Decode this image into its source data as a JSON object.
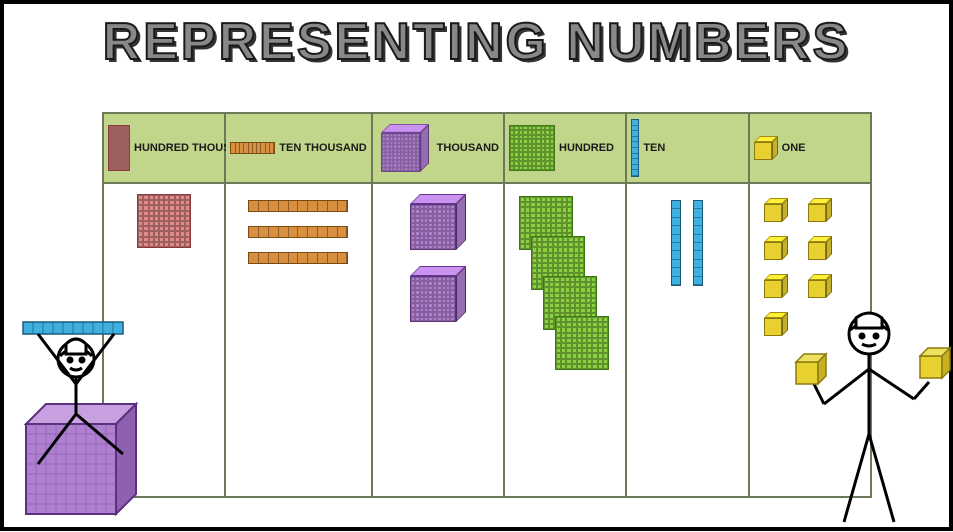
{
  "title": "REPRESENTING NUMBERS",
  "title_color": "#888888",
  "title_stroke": "#1a1a1a",
  "background": "#ffffff",
  "border_color": "#000000",
  "chart": {
    "header_bg": "#c2d68b",
    "border_color": "#6b7a5a",
    "columns": [
      {
        "label": "HUNDRED THOUSAND",
        "header_shape": "flat",
        "header_color": "#e08a8a",
        "body_count": 1,
        "body_shape": "flat",
        "body_color": "#e08a8a",
        "body_border": "#8a3a3a"
      },
      {
        "label": "TEN THOUSAND",
        "header_shape": "longbar",
        "header_color": "#d89040",
        "body_count": 3,
        "body_shape": "longbar",
        "body_color": "#d89040",
        "body_border": "#7a4a10"
      },
      {
        "label": "THOUSAND",
        "header_shape": "cube",
        "header_color": "#b080d0",
        "body_count": 2,
        "body_shape": "cube",
        "body_color": "#b080d0",
        "body_border": "#5a3080"
      },
      {
        "label": "HUNDRED",
        "header_shape": "flat",
        "header_color": "#8ad040",
        "body_count": 4,
        "body_shape": "flat-stagger",
        "body_color": "#8ad040",
        "body_border": "#3a7a10"
      },
      {
        "label": "TEN",
        "header_shape": "rod",
        "header_color": "#40b0e0",
        "body_count": 2,
        "body_shape": "rod",
        "body_color": "#40b0e0",
        "body_border": "#1a5a7a"
      },
      {
        "label": "ONE",
        "header_shape": "unit",
        "header_color": "#e8d030",
        "body_count": 7,
        "body_shape": "unit",
        "body_color": "#e8d030",
        "body_border": "#8a7a10"
      }
    ],
    "label_fontsize": 11,
    "label_color": "#1a1a1a"
  },
  "decorations": {
    "left_figure": {
      "holding_rod_color": "#40b0e0",
      "sitting_cube_color": "#b080d0"
    },
    "right_figure": {
      "holding_unit_color": "#e8d030"
    }
  }
}
